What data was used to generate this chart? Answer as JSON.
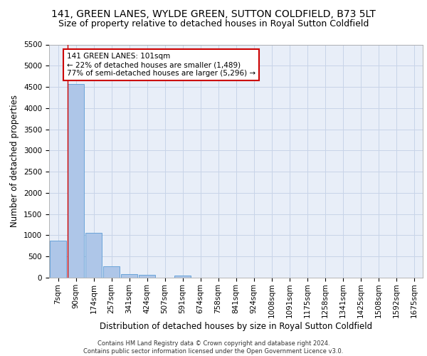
{
  "title_line1": "141, GREEN LANES, WYLDE GREEN, SUTTON COLDFIELD, B73 5LT",
  "title_line2": "Size of property relative to detached houses in Royal Sutton Coldfield",
  "xlabel": "Distribution of detached houses by size in Royal Sutton Coldfield",
  "ylabel": "Number of detached properties",
  "footnote": "Contains HM Land Registry data © Crown copyright and database right 2024.\nContains public sector information licensed under the Open Government Licence v3.0.",
  "categories": [
    "7sqm",
    "90sqm",
    "174sqm",
    "257sqm",
    "341sqm",
    "424sqm",
    "507sqm",
    "591sqm",
    "674sqm",
    "758sqm",
    "841sqm",
    "924sqm",
    "1008sqm",
    "1091sqm",
    "1175sqm",
    "1258sqm",
    "1341sqm",
    "1425sqm",
    "1508sqm",
    "1592sqm",
    "1675sqm"
  ],
  "values": [
    880,
    4560,
    1060,
    270,
    90,
    75,
    0,
    55,
    0,
    0,
    0,
    0,
    0,
    0,
    0,
    0,
    0,
    0,
    0,
    0,
    0
  ],
  "bar_color": "#aec6e8",
  "bar_edge_color": "#5b9bd5",
  "grid_color": "#c8d4e8",
  "background_color": "#e8eef8",
  "vline_x_index": 1,
  "vline_color": "#cc0000",
  "annotation_text": "141 GREEN LANES: 101sqm\n← 22% of detached houses are smaller (1,489)\n77% of semi-detached houses are larger (5,296) →",
  "annotation_box_color": "#ffffff",
  "annotation_box_edge": "#cc0000",
  "ylim": [
    0,
    5500
  ],
  "yticks": [
    0,
    500,
    1000,
    1500,
    2000,
    2500,
    3000,
    3500,
    4000,
    4500,
    5000,
    5500
  ],
  "title_fontsize": 10,
  "subtitle_fontsize": 9,
  "axis_label_fontsize": 8.5,
  "tick_fontsize": 7.5,
  "annotation_fontsize": 7.5,
  "footnote_fontsize": 6.0
}
